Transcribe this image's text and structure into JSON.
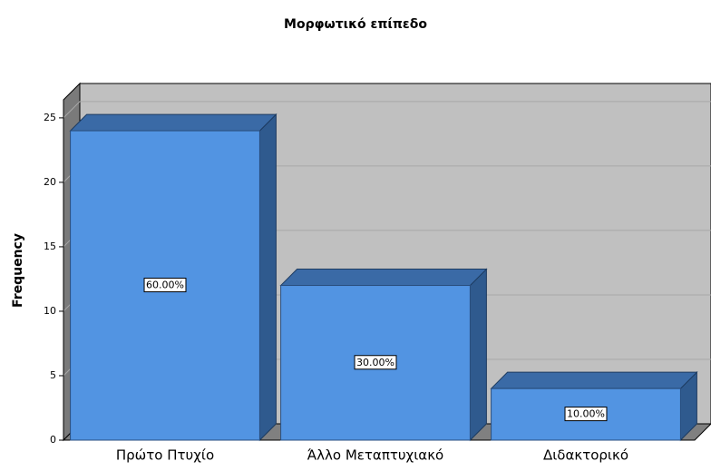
{
  "chart_data": {
    "type": "bar3d",
    "title": "Μορφωτικό επίπεδο",
    "y_label": "Frequency",
    "categories": [
      "Πρώτο Πτυχίο",
      "Άλλο Μεταπτυχιακό",
      "Διδακτορικό"
    ],
    "values": [
      24,
      12,
      4
    ],
    "bar_labels": [
      "60.00%",
      "30.00%",
      "10.00%"
    ],
    "color": "#5294e2",
    "ylim": [
      0,
      26.4
    ],
    "yticks": [
      0,
      5,
      10,
      15,
      20,
      25
    ],
    "grid": true
  }
}
